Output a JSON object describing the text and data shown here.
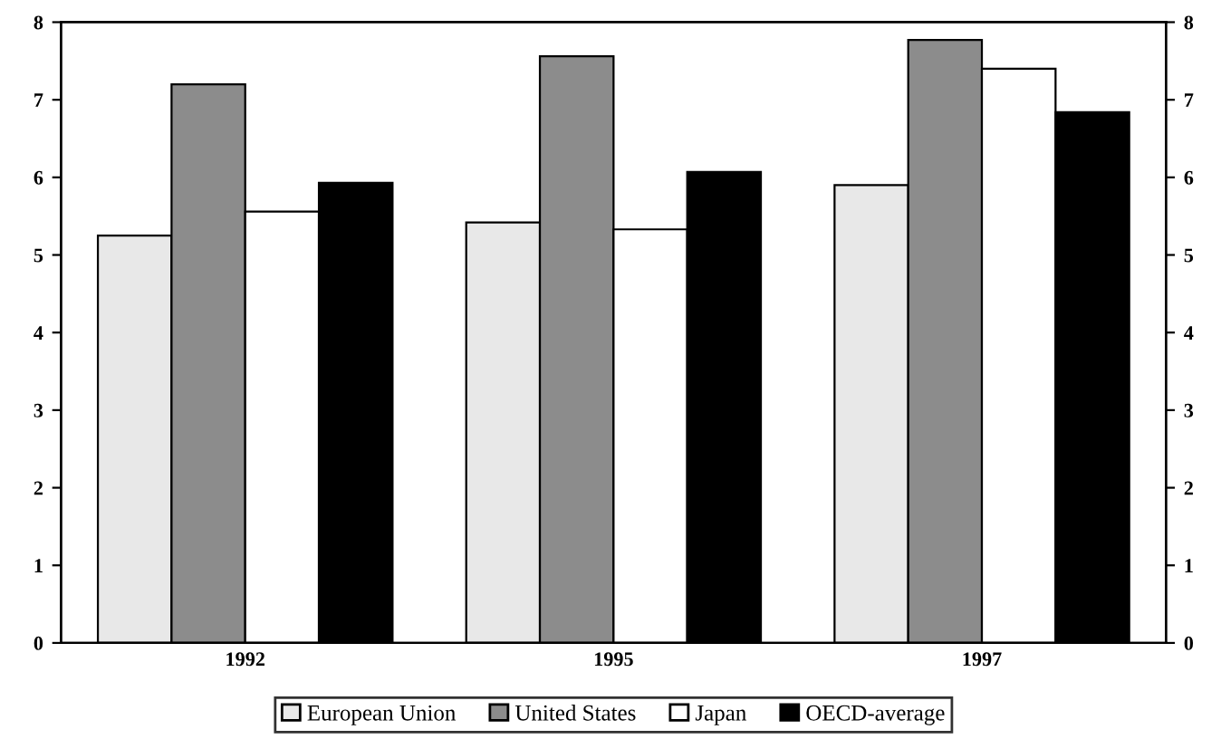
{
  "chart_data": {
    "type": "bar",
    "categories": [
      "1992",
      "1995",
      "1997"
    ],
    "series": [
      {
        "name": "European Union",
        "color": "#e8e8e8",
        "values": [
          5.25,
          5.42,
          5.9
        ]
      },
      {
        "name": "United States",
        "color": "#8c8c8c",
        "values": [
          7.2,
          7.56,
          7.77
        ]
      },
      {
        "name": "Japan",
        "color": "#ffffff",
        "values": [
          5.56,
          5.33,
          7.4
        ]
      },
      {
        "name": "OECD-average",
        "color": "#000000",
        "values": [
          5.93,
          6.07,
          6.84
        ]
      }
    ],
    "ylim": [
      0,
      8
    ],
    "yticks": [
      0,
      1,
      2,
      3,
      4,
      5,
      6,
      7,
      8
    ],
    "y2lim": [
      0,
      8
    ],
    "y2ticks": [
      0,
      1,
      2,
      3,
      4,
      5,
      6,
      7,
      8
    ],
    "grid": false,
    "legend": "bottom"
  }
}
